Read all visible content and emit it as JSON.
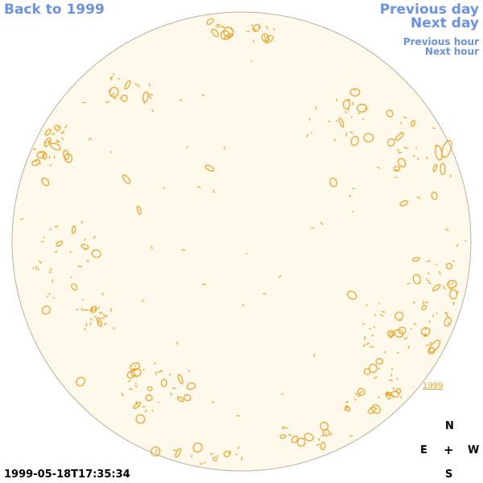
{
  "nav": {
    "back": "Back to 1999",
    "previous_day": "Previous day",
    "next_day": "Next day",
    "previous_hour": "Previous hour",
    "next_hour": "Next hour"
  },
  "timestamp": "1999-05-18T17:35:34",
  "disk_label": "1999",
  "compass": {
    "north": "N",
    "east": "E",
    "center": "+",
    "west": "W",
    "south": "S"
  },
  "colors": {
    "disk_fill": "#fff9ec",
    "disk_edge": "#b8b0a0",
    "contour": "#f0a020",
    "link": "#6b93e0"
  }
}
